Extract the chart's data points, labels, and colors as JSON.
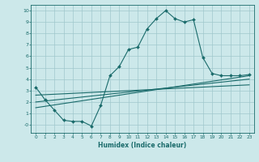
{
  "xlabel": "Humidex (Indice chaleur)",
  "ylabel": "",
  "bg_color": "#cce8ea",
  "grid_color": "#a0c8cc",
  "line_color": "#1a6b6b",
  "xlim": [
    -0.5,
    23.5
  ],
  "ylim": [
    -0.7,
    10.5
  ],
  "xticks": [
    0,
    1,
    2,
    3,
    4,
    5,
    6,
    7,
    8,
    9,
    10,
    11,
    12,
    13,
    14,
    15,
    16,
    17,
    18,
    19,
    20,
    21,
    22,
    23
  ],
  "yticks": [
    0,
    1,
    2,
    3,
    4,
    5,
    6,
    7,
    8,
    9,
    10
  ],
  "ytick_labels": [
    "-0",
    "1",
    "2",
    "3",
    "4",
    "5",
    "6",
    "7",
    "8",
    "9",
    "10"
  ],
  "series": [
    {
      "x": [
        0,
        1,
        2,
        3,
        4,
        5,
        6,
        7,
        8,
        9,
        10,
        11,
        12,
        13,
        14,
        15,
        16,
        17,
        18,
        19,
        20,
        21,
        22,
        23
      ],
      "y": [
        3.3,
        2.2,
        1.3,
        0.4,
        0.3,
        0.3,
        -0.1,
        1.7,
        4.3,
        5.1,
        6.6,
        6.8,
        8.4,
        9.3,
        10.0,
        9.3,
        9.0,
        9.2,
        5.9,
        4.5,
        4.3,
        4.3,
        4.3,
        4.4
      ],
      "has_markers": true
    },
    {
      "x": [
        0,
        23
      ],
      "y": [
        1.5,
        4.3
      ],
      "has_markers": false
    },
    {
      "x": [
        0,
        23
      ],
      "y": [
        2.0,
        4.0
      ],
      "has_markers": false
    },
    {
      "x": [
        0,
        23
      ],
      "y": [
        2.6,
        3.5
      ],
      "has_markers": false
    }
  ]
}
